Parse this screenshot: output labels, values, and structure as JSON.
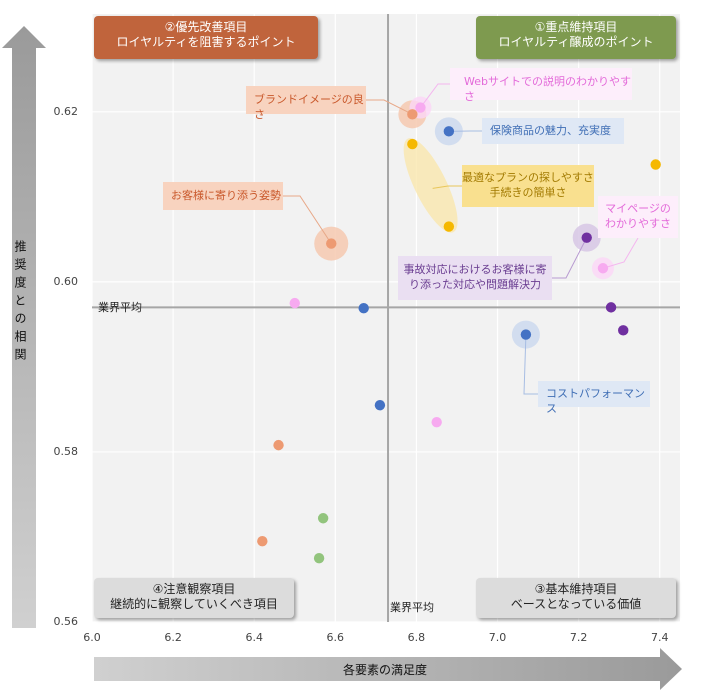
{
  "chart_data": {
    "type": "scatter",
    "xlabel": "各要素の満足度",
    "ylabel": "推奨度との相関",
    "xlim": [
      6.0,
      7.45
    ],
    "ylim": [
      0.56,
      0.6315
    ],
    "xticks": [
      "6.0",
      "6.2",
      "6.4",
      "6.6",
      "6.8",
      "7.0",
      "7.2",
      "7.4"
    ],
    "yticks": [
      "0.56",
      "0.58",
      "0.60",
      "0.62"
    ],
    "grid": true,
    "average_lines": {
      "x": 6.73,
      "y": 0.597,
      "label_h": "業界平均",
      "label_v": "業界平均"
    },
    "quadrants": {
      "q1": {
        "line1": "①重点維持項目",
        "line2": "ロイヤルティ醸成のポイント",
        "color": "#7e9a4f"
      },
      "q2": {
        "line1": "②優先改善項目",
        "line2": "ロイヤルティを阻害するポイント",
        "color": "#c0643c"
      },
      "q3": {
        "line1": "③基本維持項目",
        "line2": "ベースとなっている価値",
        "color": "#dcdcdc"
      },
      "q4": {
        "line1": "④注意観察項目",
        "line2": "継続的に観察していくべき項目",
        "color": "#dcdcdc"
      }
    },
    "labels": {
      "web": "Webサイトでの説明のわかりやすさ",
      "brand": "ブランドイメージの良さ",
      "hoken": "保険商品の魅力、充実度",
      "plan1": "最適なプランの探しやすさ",
      "plan2": "手続きの簡単さ",
      "okyaku": "お客様に寄り添う姿勢",
      "my1": "マイページの",
      "my2": "わかりやすさ",
      "jiko1": "事故対応におけるお客様に寄",
      "jiko2": "り添った対応や問題解決力",
      "cost": "コストパフォーマンス"
    },
    "series": [
      {
        "name": "orange-salmon",
        "color": "#ed9a72",
        "points": [
          [
            6.79,
            0.6197
          ],
          [
            6.59,
            0.6045
          ],
          [
            6.46,
            0.5808
          ],
          [
            6.42,
            0.5695
          ]
        ]
      },
      {
        "name": "blue",
        "color": "#4472c4",
        "points": [
          [
            6.88,
            0.6177
          ],
          [
            6.67,
            0.5969
          ],
          [
            6.71,
            0.5855
          ],
          [
            7.07,
            0.5938
          ]
        ]
      },
      {
        "name": "yellow",
        "color": "#f5b800",
        "points": [
          [
            6.79,
            0.6162
          ],
          [
            6.88,
            0.6065
          ],
          [
            7.39,
            0.6138
          ]
        ]
      },
      {
        "name": "pink",
        "color": "#f7aaf0",
        "points": [
          [
            6.81,
            0.6205
          ],
          [
            7.26,
            0.6016
          ],
          [
            6.5,
            0.5975
          ],
          [
            6.85,
            0.5835
          ]
        ]
      },
      {
        "name": "purple",
        "color": "#7030a0",
        "points": [
          [
            7.22,
            0.6052
          ],
          [
            7.28,
            0.597
          ],
          [
            7.31,
            0.5943
          ]
        ]
      },
      {
        "name": "green",
        "color": "#92c47d",
        "points": [
          [
            6.57,
            0.5722
          ],
          [
            6.56,
            0.5675
          ]
        ]
      }
    ]
  }
}
